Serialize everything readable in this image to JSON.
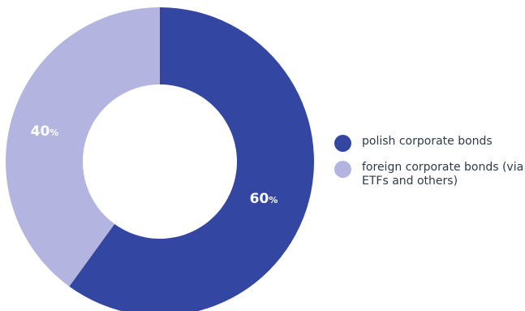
{
  "chart_data": {
    "type": "pie",
    "donut": true,
    "categories": [
      "polish corporate bonds",
      "foreign corporate bonds (via ETFs and others)"
    ],
    "values": [
      60,
      40
    ],
    "unit": "%",
    "colors": [
      "#3346a2",
      "#b3b4e0"
    ],
    "legend_placement": "right",
    "data_labels": [
      {
        "num": "60",
        "sign": "%"
      },
      {
        "num": "40",
        "sign": "%"
      }
    ],
    "legend": [
      {
        "label": "polish corporate bonds"
      },
      {
        "label": "foreign corporate bonds (via ETFs and others)"
      }
    ]
  }
}
